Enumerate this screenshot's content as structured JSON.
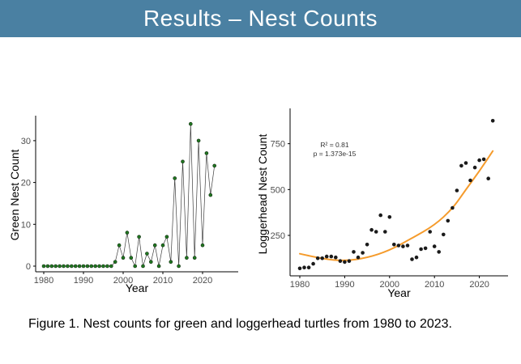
{
  "header": {
    "title": "Results – Nest Counts",
    "bg_color": "#4A80A2",
    "text_color": "#FFFFFF"
  },
  "caption": "Figure 1. Nest counts for green and loggerhead turtles from 1980 to 2023.",
  "chart_data": [
    {
      "type": "line",
      "title": "",
      "xlabel": "Year",
      "ylabel": "Green Nest Count",
      "x": [
        1980,
        1981,
        1982,
        1983,
        1984,
        1985,
        1986,
        1987,
        1988,
        1989,
        1990,
        1991,
        1992,
        1993,
        1994,
        1995,
        1996,
        1997,
        1998,
        1999,
        2000,
        2001,
        2002,
        2003,
        2004,
        2005,
        2006,
        2007,
        2008,
        2009,
        2010,
        2011,
        2012,
        2013,
        2014,
        2015,
        2016,
        2017,
        2018,
        2019,
        2020,
        2021,
        2022,
        2023
      ],
      "values": [
        0,
        0,
        0,
        0,
        0,
        0,
        0,
        0,
        0,
        0,
        0,
        0,
        0,
        0,
        0,
        0,
        0,
        0,
        1,
        5,
        2,
        8,
        2,
        0,
        7,
        0,
        3,
        1,
        5,
        0,
        5,
        7,
        1,
        21,
        0,
        25,
        2,
        34,
        2,
        30,
        5,
        27,
        17,
        24
      ],
      "xticks": [
        1980,
        1990,
        2000,
        2010,
        2020
      ],
      "yticks": [
        0,
        10,
        20,
        30
      ],
      "xlim": [
        1978,
        2026
      ],
      "ylim": [
        0,
        35
      ],
      "grid": false,
      "legend": "none",
      "point_color": "#217821",
      "point_edge_color": "#102810",
      "line_color": "#3f3f3f"
    },
    {
      "type": "scatter",
      "title": "",
      "xlabel": "Year",
      "ylabel": "Loggerhead Nest Count",
      "x": [
        1980,
        1981,
        1982,
        1983,
        1984,
        1985,
        1986,
        1987,
        1988,
        1989,
        1990,
        1991,
        1992,
        1993,
        1994,
        1995,
        1996,
        1997,
        1998,
        1999,
        2000,
        2001,
        2002,
        2003,
        2004,
        2005,
        2006,
        2007,
        2008,
        2009,
        2010,
        2011,
        2012,
        2013,
        2014,
        2015,
        2016,
        2017,
        2018,
        2019,
        2020,
        2021,
        2022,
        2023
      ],
      "values": [
        70,
        75,
        75,
        95,
        125,
        125,
        135,
        135,
        130,
        110,
        105,
        110,
        160,
        130,
        155,
        200,
        280,
        270,
        360,
        270,
        350,
        200,
        195,
        190,
        195,
        120,
        130,
        175,
        180,
        270,
        190,
        160,
        255,
        330,
        400,
        495,
        630,
        645,
        550,
        620,
        660,
        665,
        560,
        875
      ],
      "xticks": [
        1980,
        1990,
        2000,
        2010,
        2020
      ],
      "yticks": [
        250,
        500,
        750
      ],
      "xlim": [
        1978,
        2026
      ],
      "ylim": [
        25,
        900
      ],
      "grid": false,
      "legend": "none",
      "point_color": "#1a1a1a",
      "annotation": {
        "line1": "R² = 0.81",
        "line2": "p = 1.373e-15"
      },
      "fit_curve": {
        "color": "#F59B2C",
        "points": [
          [
            1980,
            150
          ],
          [
            1985,
            122
          ],
          [
            1990,
            110
          ],
          [
            1995,
            128
          ],
          [
            2000,
            168
          ],
          [
            2005,
            235
          ],
          [
            2010,
            305
          ],
          [
            2014,
            395
          ],
          [
            2017,
            500
          ],
          [
            2020,
            600
          ],
          [
            2023,
            710
          ]
        ]
      }
    }
  ]
}
